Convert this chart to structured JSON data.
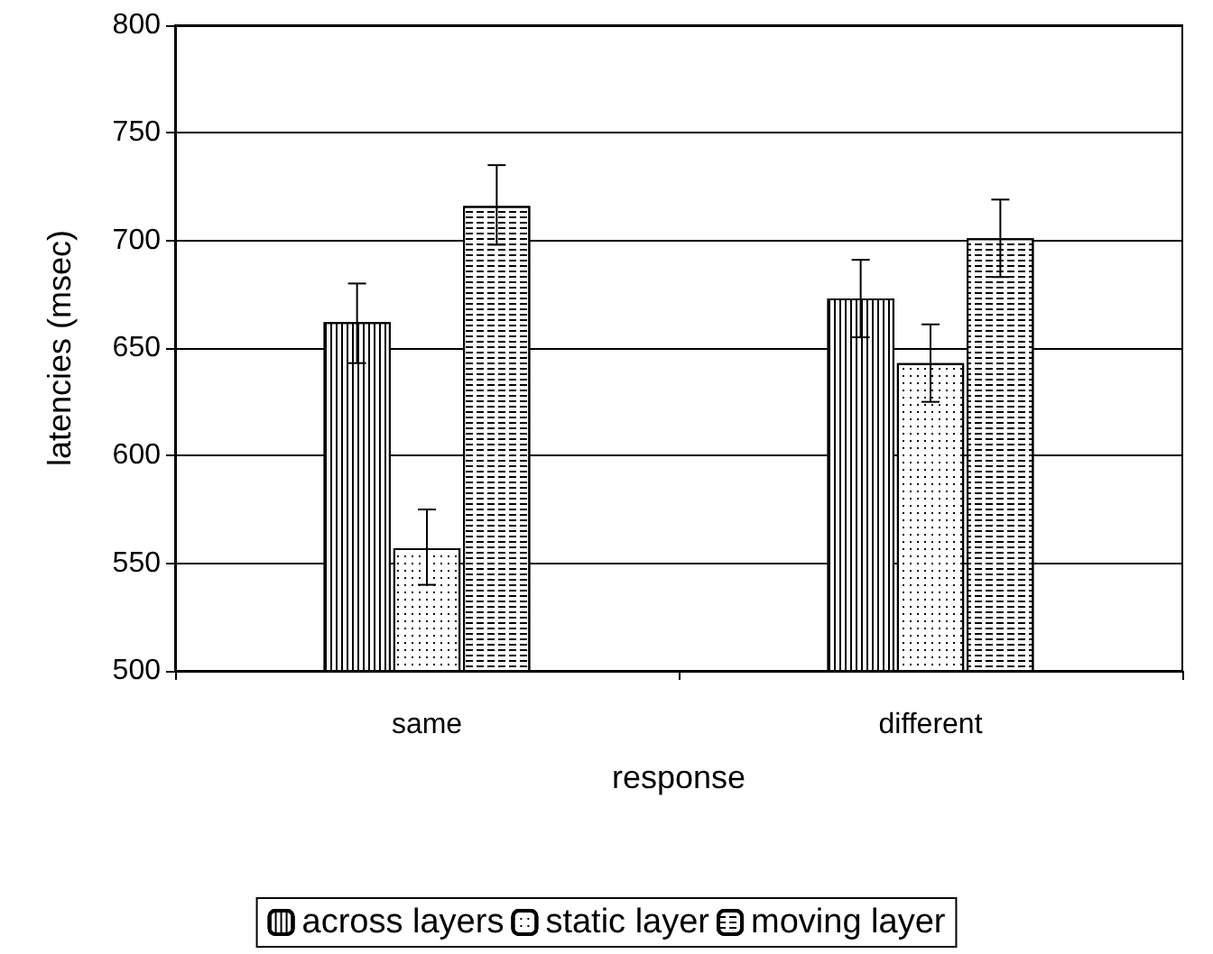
{
  "chart_data": {
    "type": "bar",
    "xlabel": "response",
    "ylabel": "latencies (msec)",
    "categories": [
      "same",
      "different"
    ],
    "series": [
      {
        "name": "across layers",
        "color": "#ffffff",
        "values": [
          662,
          673
        ],
        "errors": [
          [
            643,
            680
          ],
          [
            655,
            691
          ]
        ]
      },
      {
        "name": "static layer",
        "color": "#ffffff",
        "values": [
          557,
          643
        ],
        "errors": [
          [
            540,
            575
          ],
          [
            625,
            661
          ]
        ]
      },
      {
        "name": "moving layer",
        "color": "#ffffff",
        "values": [
          716,
          701
        ],
        "errors": [
          [
            698,
            735
          ],
          [
            683,
            719
          ]
        ]
      }
    ],
    "ylim": [
      500,
      800
    ],
    "yticks": [
      500,
      550,
      600,
      650,
      700,
      750,
      800
    ],
    "grid": "y",
    "legend": "bottom"
  }
}
